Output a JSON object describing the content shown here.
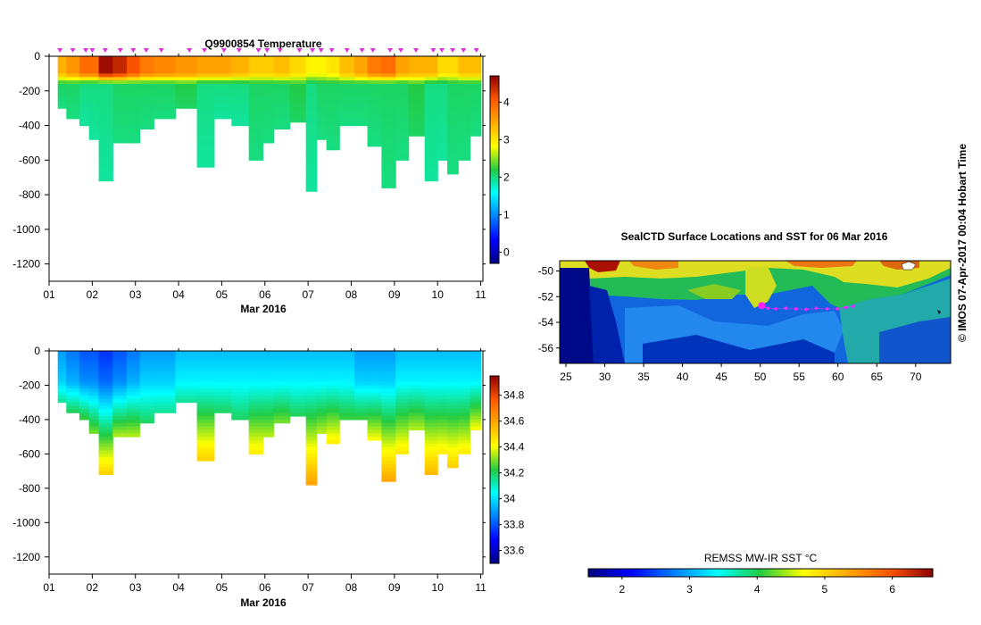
{
  "chart_data": [
    {
      "type": "heatmap",
      "title": "Q9900854  Temperature",
      "xlabel": "Mar 2016",
      "x_tick_labels": [
        "01",
        "02",
        "03",
        "04",
        "05",
        "06",
        "07",
        "08",
        "09",
        "10",
        "11"
      ],
      "x_range": [
        1,
        11.05
      ],
      "ylim": [
        -1300,
        0
      ],
      "y_ticks": [
        0,
        -200,
        -400,
        -600,
        -800,
        -1000,
        -1200
      ],
      "y_tick_labels": [
        "0",
        "-200",
        "-400",
        "-600",
        "-800",
        "-1000",
        "-1200"
      ],
      "colorbar": {
        "range": [
          -0.3,
          4.7
        ],
        "ticks": [
          0,
          1,
          2,
          3,
          4
        ],
        "tick_labels": [
          "0",
          "1",
          "2",
          "3",
          "4"
        ]
      },
      "profile_days": [
        1.25,
        1.55,
        1.85,
        2.0,
        2.3,
        2.65,
        2.95,
        3.25,
        3.6,
        4.25,
        4.6,
        5.05,
        5.4,
        5.85,
        6.05,
        6.35,
        6.8,
        7.1,
        7.3,
        7.55,
        7.9,
        8.25,
        8.5,
        8.9,
        9.15,
        9.5,
        9.9,
        10.1,
        10.35,
        10.6,
        10.9
      ],
      "max_depths": [
        300,
        350,
        400,
        480,
        710,
        500,
        500,
        420,
        360,
        300,
        630,
        360,
        400,
        600,
        500,
        420,
        370,
        770,
        480,
        540,
        400,
        400,
        510,
        760,
        590,
        460,
        710,
        600,
        670,
        600,
        450
      ],
      "surface_values": [
        3.4,
        3.6,
        3.9,
        3.9,
        4.6,
        4.4,
        4.1,
        3.8,
        3.7,
        3.6,
        3.5,
        3.5,
        3.4,
        3.2,
        3.2,
        3.3,
        3.1,
        2.9,
        2.9,
        3.0,
        3.3,
        3.5,
        3.8,
        3.9,
        3.5,
        3.4,
        3.4,
        3.1,
        3.1,
        3.3,
        3.3
      ],
      "deep_values": [
        2.1,
        2.1,
        2.0,
        2.0,
        2.0,
        2.1,
        2.1,
        2.1,
        2.1,
        2.2,
        2.0,
        2.0,
        2.0,
        2.1,
        2.1,
        2.1,
        2.2,
        2.0,
        2.1,
        2.1,
        2.1,
        2.1,
        2.1,
        2.1,
        2.1,
        2.2,
        2.0,
        2.0,
        2.1,
        2.1,
        2.1
      ]
    },
    {
      "type": "heatmap",
      "title": "",
      "xlabel": "Mar 2016",
      "x_tick_labels": [
        "01",
        "02",
        "03",
        "04",
        "05",
        "06",
        "07",
        "08",
        "09",
        "10",
        "11"
      ],
      "x_range": [
        1,
        11.05
      ],
      "ylim": [
        -1300,
        0
      ],
      "y_ticks": [
        0,
        -200,
        -400,
        -600,
        -800,
        -1000,
        -1200
      ],
      "y_tick_labels": [
        "0",
        "-200",
        "-400",
        "-600",
        "-800",
        "-1000",
        "-1200"
      ],
      "colorbar": {
        "range": [
          33.5,
          34.95
        ],
        "ticks": [
          33.6,
          33.8,
          34,
          34.2,
          34.4,
          34.6,
          34.8
        ],
        "tick_labels": [
          "33.6",
          "33.8",
          "34",
          "34.2",
          "34.4",
          "34.6",
          "34.8"
        ]
      },
      "surface_values": [
        33.9,
        33.85,
        33.8,
        33.8,
        33.75,
        33.8,
        33.85,
        33.9,
        33.9,
        33.95,
        33.95,
        33.95,
        33.95,
        33.95,
        33.95,
        33.95,
        33.95,
        33.95,
        33.95,
        33.95,
        33.95,
        33.9,
        33.9,
        33.9,
        33.95,
        33.95,
        33.95,
        33.95,
        33.95,
        33.95,
        33.95
      ],
      "bottom_values": [
        34.15,
        34.2,
        34.25,
        34.3,
        34.5,
        34.35,
        34.35,
        34.2,
        34.15,
        34.15,
        34.5,
        34.2,
        34.2,
        34.45,
        34.35,
        34.3,
        34.2,
        34.6,
        34.35,
        34.45,
        34.25,
        34.25,
        34.4,
        34.6,
        34.45,
        34.35,
        34.55,
        34.45,
        34.5,
        34.45,
        34.4
      ]
    },
    {
      "type": "heatmap",
      "title": "SealCTD Surface Locations and SST for 06 Mar 2016",
      "x_tick_labels": [
        "25",
        "30",
        "35",
        "40",
        "45",
        "50",
        "55",
        "60",
        "65",
        "70"
      ],
      "x_ticks": [
        25,
        30,
        35,
        40,
        45,
        50,
        55,
        60,
        65,
        70
      ],
      "xlim": [
        24.2,
        74.5
      ],
      "ylim": [
        -57.2,
        -49.2
      ],
      "y_ticks": [
        -50,
        -52,
        -54,
        -56
      ],
      "y_tick_labels": [
        "-50",
        "-52",
        "-54",
        "-56"
      ],
      "track_lon": [
        50.2,
        51.0,
        52.0,
        53.3,
        54.6,
        55.9,
        57.2,
        58.6,
        59.9,
        61.0,
        62.0
      ],
      "track_lat": [
        -52.7,
        -52.9,
        -52.95,
        -52.9,
        -52.95,
        -53.0,
        -52.9,
        -52.95,
        -52.95,
        -52.85,
        -52.75
      ],
      "colorbar": {
        "label": "REMSS MW-IR SST °C",
        "range": [
          1.5,
          6.6
        ],
        "ticks": [
          2,
          3,
          4,
          5,
          6
        ],
        "tick_labels": [
          "2",
          "3",
          "4",
          "5",
          "6"
        ]
      }
    }
  ],
  "credit": "© IMOS 07-Apr-2017 00:04 Hobart Time",
  "colors": {
    "profile_marker": "#dd33dd",
    "track": "#ff22ff"
  }
}
